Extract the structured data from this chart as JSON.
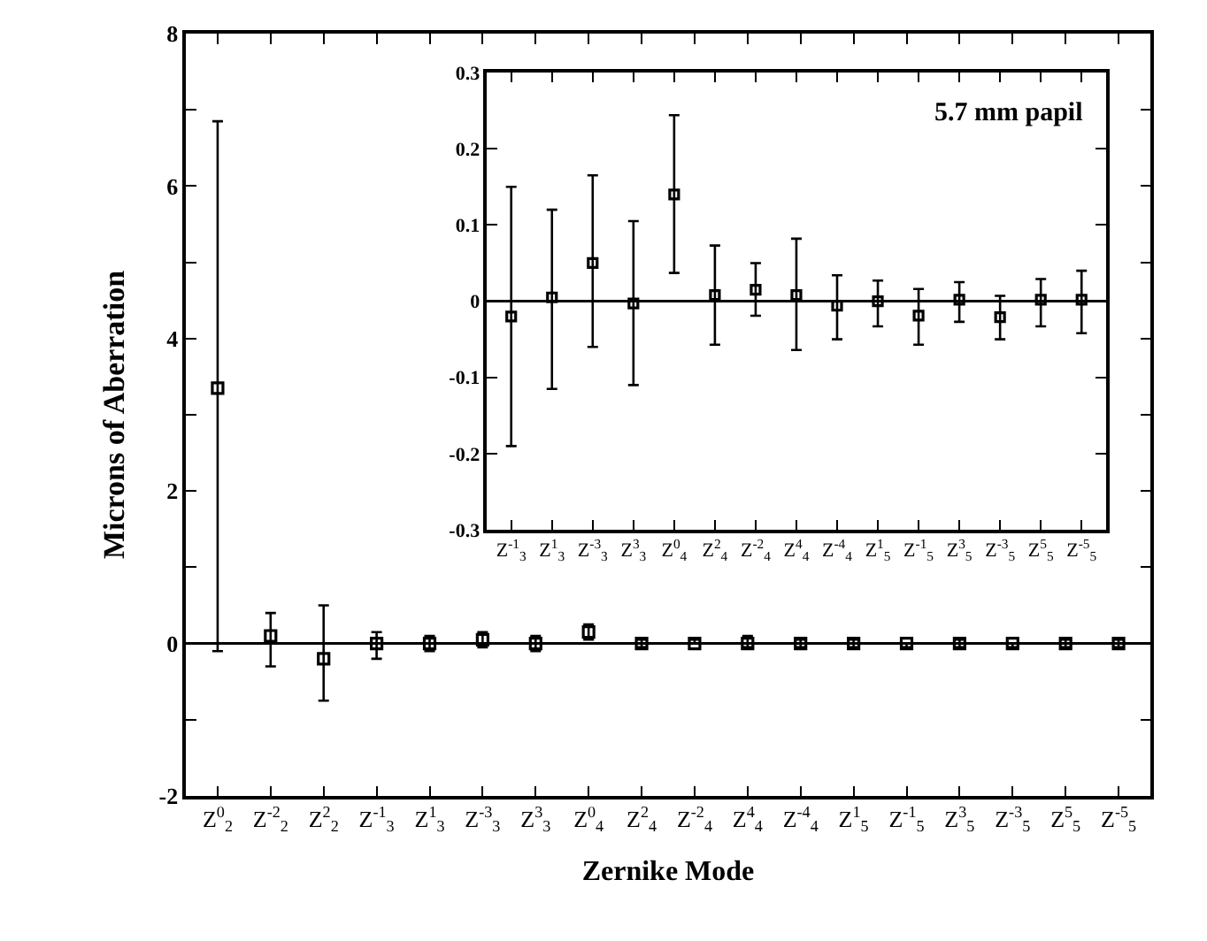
{
  "chart_data": [
    {
      "type": "scatter",
      "xlabel": "Zernike Mode",
      "ylabel": "Microns of Aberration",
      "categories": [
        "Z$^{0}$$_{2}$",
        "Z$^{-2}$$_{2}$",
        "Z$^{2}$$_{2}$",
        "Z$^{-1}$$_{3}$",
        "Z$^{1}$$_{3}$",
        "Z$^{-3}$$_{3}$",
        "Z$^{3}$$_{3}$",
        "Z$^{0}$$_{4}$",
        "Z$^{2}$$_{4}$",
        "Z$^{-2}$$_{4}$",
        "Z$^{4}$$_{4}$",
        "Z$^{-4}$$_{4}$",
        "Z$^{1}$$_{5}$",
        "Z$^{-1}$$_{5}$",
        "Z$^{3}$$_{5}$",
        "Z$^{-3}$$_{5}$",
        "Z$^{5}$$_{5}$",
        "Z$^{-5}$$_{5}$"
      ],
      "series": [
        {
          "color": "#000000",
          "values": [
            3.35,
            0.1,
            -0.2,
            0,
            0,
            0.05,
            0,
            0.15,
            0,
            0,
            0,
            0,
            0,
            0,
            0,
            0,
            0,
            0
          ],
          "errors": [
            [
              -0.1,
              6.85
            ],
            [
              -0.3,
              0.4
            ],
            [
              -0.75,
              0.5
            ],
            [
              -0.2,
              0.15
            ],
            [
              -0.1,
              0.1
            ],
            [
              -0.05,
              0.15
            ],
            [
              -0.1,
              0.1
            ],
            [
              0.05,
              0.25
            ],
            [
              -0.05,
              0.05
            ],
            [
              0,
              0.05
            ],
            [
              -0.05,
              0.1
            ],
            [
              -0.05,
              0.05
            ],
            [
              -0.05,
              0.05
            ],
            [
              -0.05,
              0
            ],
            [
              -0.05,
              0.05
            ],
            [
              -0.05,
              0
            ],
            [
              -0.05,
              0.05
            ],
            [
              -0.05,
              0.05
            ]
          ]
        }
      ],
      "ylim": [
        -2,
        8
      ],
      "marker": "square",
      "yticks": [
        -2,
        {
          "value": -1,
          "label": null
        },
        0,
        {
          "value": 1,
          "label": null
        },
        2,
        {
          "value": 3,
          "label": null
        },
        4,
        {
          "value": 5,
          "label": null
        },
        6,
        {
          "value": 7,
          "label": null
        },
        8
      ],
      "ref_lines": [
        {
          "axis": "y",
          "value": 0,
          "color": "#000000"
        }
      ]
    },
    {
      "type": "scatter",
      "annotations": [
        "5.7 mm papil"
      ],
      "categories": [
        "Z$^{-1}$$_{3}$",
        "Z$^{1}$$_{3}$",
        "Z$^{-3}$$_{3}$",
        "Z$^{3}$$_{3}$",
        "Z$^{0}$$_{4}$",
        "Z$^{2}$$_{4}$",
        "Z$^{-2}$$_{4}$",
        "Z$^{4}$$_{4}$",
        "Z$^{-4}$$_{4}$",
        "Z$^{1}$$_{5}$",
        "Z$^{-1}$$_{5}$",
        "Z$^{3}$$_{5}$",
        "Z$^{-3}$$_{5}$",
        "Z$^{5}$$_{5}$",
        "Z$^{-5}$$_{5}$"
      ],
      "series": [
        {
          "color": "#000000",
          "values": [
            -0.02,
            0.005,
            0.05,
            -0.003,
            0.14,
            0.008,
            0.015,
            0.008,
            -0.006,
            0.0,
            -0.019,
            0.002,
            -0.021,
            0.002,
            0.002
          ],
          "errors": [
            [
              -0.19,
              0.15
            ],
            [
              -0.115,
              0.12
            ],
            [
              -0.06,
              0.165
            ],
            [
              -0.11,
              0.105
            ],
            [
              0.037,
              0.244
            ],
            [
              -0.057,
              0.073
            ],
            [
              -0.019,
              0.05
            ],
            [
              -0.064,
              0.082
            ],
            [
              -0.05,
              0.034
            ],
            [
              -0.033,
              0.027
            ],
            [
              -0.057,
              0.016
            ],
            [
              -0.027,
              0.025
            ],
            [
              -0.05,
              0.007
            ],
            [
              -0.033,
              0.029
            ],
            [
              -0.042,
              0.04
            ]
          ]
        }
      ],
      "ylim": [
        -0.3,
        0.3
      ],
      "yticks": [
        -0.3,
        -0.2,
        -0.1,
        0,
        0.1,
        0.2,
        0.3
      ],
      "ref_lines": [
        {
          "axis": "y",
          "value": 0,
          "color": "#000000"
        }
      ],
      "marker": "square"
    }
  ]
}
